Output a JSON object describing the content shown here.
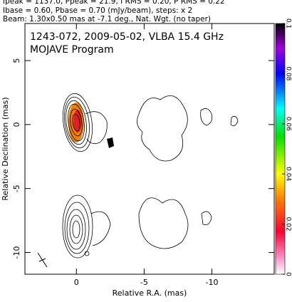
{
  "chart_data": {
    "type": "contour",
    "header": [
      "Ipeak = 1137.0, Ppeak = 21.9, I RMS = 0.20, P RMS = 0.22",
      "Ibase = 0.60, Pbase = 0.70 (mJy/beam), steps: x 2",
      "Beam: 1.30x0.50 mas at -7.1 deg., Nat. Wgt. (no taper)"
    ],
    "title": "1243-072, 2009-05-02, VLBA 15.4 GHz",
    "subtitle": "MOJAVE Program",
    "xlabel": "Relative R.A. (mas)",
    "ylabel": "Relative Declination (mas)",
    "xlim": [
      3.8,
      -14.6
    ],
    "xticks": [
      0,
      -5,
      -10
    ],
    "ylim": [
      -11.7,
      7.9
    ],
    "yticks": [
      5,
      0,
      -5,
      -10
    ],
    "colorbar": {
      "lim": [
        0,
        0.1
      ],
      "ticks": [
        0,
        0.02,
        0.04,
        0.06,
        0.08,
        0.1
      ]
    }
  }
}
